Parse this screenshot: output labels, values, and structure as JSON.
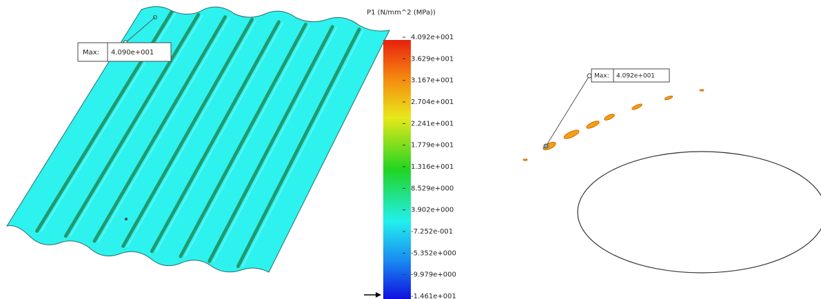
{
  "left_view": {
    "callout": {
      "label": "Max:",
      "value": "4.090e+001"
    }
  },
  "legend": {
    "title": "P1 (N/mm^2 (MPa))",
    "ticks": [
      "4.092e+001",
      "3.629e+001",
      "3.167e+001",
      "2.704e+001",
      "2.241e+001",
      "1.779e+001",
      "1.316e+001",
      "8.529e+000",
      "3.902e+000",
      "-7.252e-001",
      "-5.352e+000",
      "-9.979e+000",
      "-1.461e+001"
    ]
  },
  "right_view": {
    "callout": {
      "label": "Max:",
      "value": "4.092e+001"
    }
  }
}
